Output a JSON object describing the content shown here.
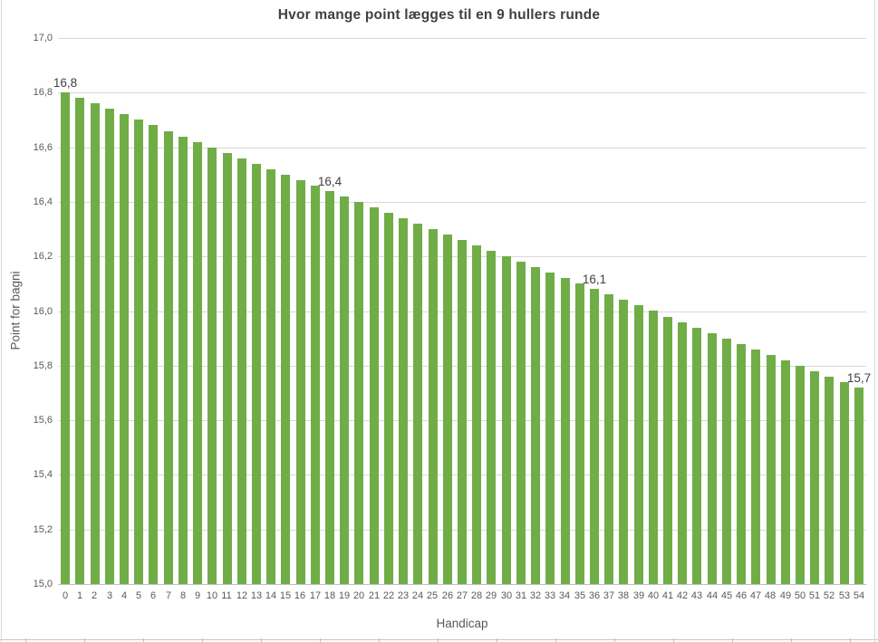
{
  "chart_data": {
    "type": "bar",
    "title": "Hvor mange point lægges til en 9 hullers runde",
    "xlabel": "Handicap",
    "ylabel": "Point for bagni",
    "categories": [
      "0",
      "1",
      "2",
      "3",
      "4",
      "5",
      "6",
      "7",
      "8",
      "9",
      "10",
      "11",
      "12",
      "13",
      "14",
      "15",
      "16",
      "17",
      "18",
      "19",
      "20",
      "21",
      "22",
      "23",
      "24",
      "25",
      "26",
      "27",
      "28",
      "29",
      "30",
      "31",
      "32",
      "33",
      "34",
      "35",
      "36",
      "37",
      "38",
      "39",
      "40",
      "41",
      "42",
      "43",
      "44",
      "45",
      "46",
      "47",
      "48",
      "49",
      "50",
      "51",
      "52",
      "53",
      "54"
    ],
    "values": [
      16.8,
      16.78,
      16.76,
      16.74,
      16.72,
      16.7,
      16.68,
      16.66,
      16.64,
      16.62,
      16.6,
      16.58,
      16.56,
      16.54,
      16.52,
      16.5,
      16.48,
      16.46,
      16.44,
      16.42,
      16.4,
      16.38,
      16.36,
      16.34,
      16.32,
      16.3,
      16.28,
      16.26,
      16.24,
      16.22,
      16.2,
      16.18,
      16.16,
      16.14,
      16.12,
      16.1,
      16.08,
      16.06,
      16.04,
      16.02,
      16.0,
      15.98,
      15.96,
      15.94,
      15.92,
      15.9,
      15.88,
      15.86,
      15.84,
      15.82,
      15.8,
      15.78,
      15.76,
      15.74,
      15.72
    ],
    "ylim": [
      15.0,
      17.0
    ],
    "ytick_step": 0.2,
    "ytick_labels_top_to_bottom": [
      "17,0",
      "16,8",
      "16,6",
      "16,4",
      "16,2",
      "16,0",
      "15,8",
      "15,6",
      "15,4",
      "15,2",
      "15,0"
    ],
    "data_labels": [
      {
        "index": 0,
        "text": "16,8"
      },
      {
        "index": 18,
        "text": "16,4"
      },
      {
        "index": 36,
        "text": "16,1"
      },
      {
        "index": 54,
        "text": "15,7"
      }
    ],
    "grid": true,
    "legend": "none",
    "colors": {
      "bar": "#70AD47",
      "gridline": "#D9D9D9",
      "axis_line": "#BFBFBF",
      "title_text": "#404040",
      "tick_text": "#595959",
      "data_label_text": "#404040",
      "axis_title_text": "#595959"
    }
  }
}
